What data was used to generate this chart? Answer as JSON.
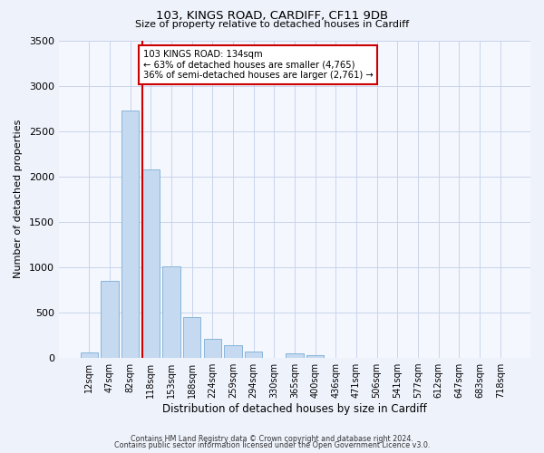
{
  "title1": "103, KINGS ROAD, CARDIFF, CF11 9DB",
  "title2": "Size of property relative to detached houses in Cardiff",
  "xlabel": "Distribution of detached houses by size in Cardiff",
  "ylabel": "Number of detached properties",
  "bar_labels": [
    "12sqm",
    "47sqm",
    "82sqm",
    "118sqm",
    "153sqm",
    "188sqm",
    "224sqm",
    "259sqm",
    "294sqm",
    "330sqm",
    "365sqm",
    "400sqm",
    "436sqm",
    "471sqm",
    "506sqm",
    "541sqm",
    "577sqm",
    "612sqm",
    "647sqm",
    "683sqm",
    "718sqm"
  ],
  "bar_values": [
    55,
    850,
    2725,
    2075,
    1010,
    450,
    205,
    140,
    65,
    0,
    45,
    30,
    0,
    0,
    0,
    0,
    0,
    0,
    0,
    0,
    0
  ],
  "bar_color": "#c5d9f0",
  "bar_edge_color": "#7aadd4",
  "vline_color": "#cc0000",
  "ylim": [
    0,
    3500
  ],
  "yticks": [
    0,
    500,
    1000,
    1500,
    2000,
    2500,
    3000,
    3500
  ],
  "annotation_title": "103 KINGS ROAD: 134sqm",
  "annotation_line1": "← 63% of detached houses are smaller (4,765)",
  "annotation_line2": "36% of semi-detached houses are larger (2,761) →",
  "annotation_box_color": "#ffffff",
  "annotation_box_edge": "#cc0000",
  "footnote1": "Contains HM Land Registry data © Crown copyright and database right 2024.",
  "footnote2": "Contains public sector information licensed under the Open Government Licence v3.0.",
  "bg_color": "#eef2fb",
  "plot_bg_color": "#f5f7fe",
  "grid_color": "#c8d4ec"
}
